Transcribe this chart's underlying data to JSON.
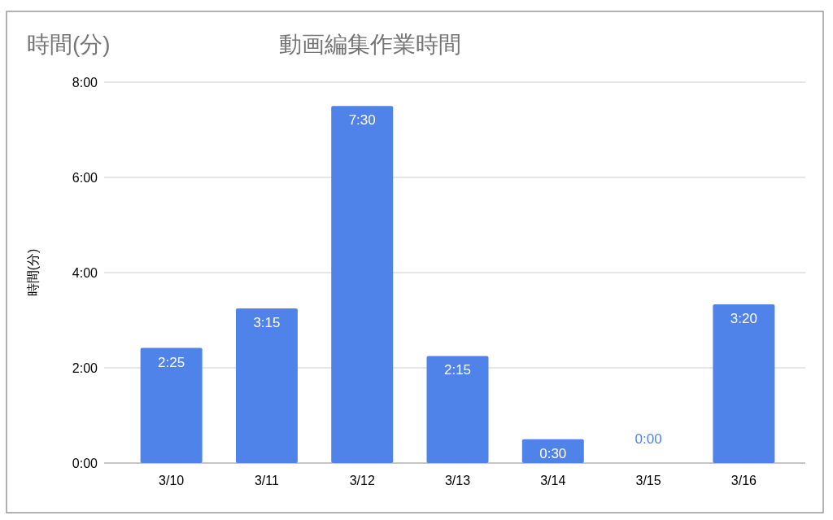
{
  "chart_data": {
    "type": "bar",
    "title": "動画編集作業時間",
    "ylabel": "時間(分)",
    "annotations": [
      "時間(分)"
    ],
    "categories": [
      "3/10",
      "3/11",
      "3/12",
      "3/13",
      "3/14",
      "3/15",
      "3/16"
    ],
    "values": [
      2.4167,
      3.25,
      7.5,
      2.25,
      0.5,
      0,
      3.3333
    ],
    "value_labels": [
      "2:25",
      "3:15",
      "7:30",
      "2:15",
      "0:30",
      "0:00",
      "3:20"
    ],
    "color": "#5083e9",
    "ylim": [
      0,
      8
    ],
    "yticks": [
      {
        "value": 0,
        "label": "0:00"
      },
      {
        "value": 2,
        "label": "2:00"
      },
      {
        "value": 4,
        "label": "4:00"
      },
      {
        "value": 6,
        "label": "6:00"
      },
      {
        "value": 8,
        "label": "8:00"
      }
    ],
    "grid": "y"
  }
}
